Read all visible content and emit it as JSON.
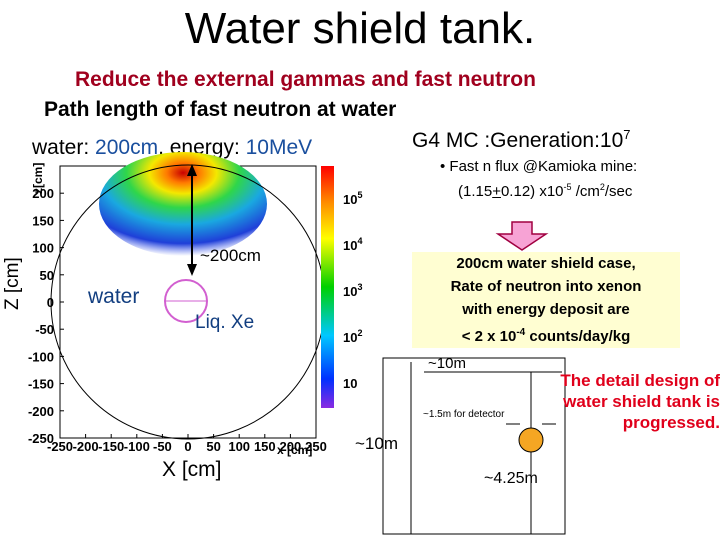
{
  "title": "Water shield tank.",
  "subtitle1": "Reduce the external gammas and fast neutron",
  "subtitle2": "Path length of fast neutron at water",
  "water_line": {
    "prefix": "water: ",
    "length": "200cm",
    "mid": ", energy: ",
    "energy": "10MeV"
  },
  "g4": {
    "text": "G4 MC :Generation:10",
    "exp": "7"
  },
  "flux": {
    "line1": "• Fast n flux @Kamioka mine:",
    "a": "(1.15",
    "pm": "+",
    "b": "0.12) x10",
    "exp1": "-5",
    "c": " /cm",
    "exp2": "2",
    "d": "/sec"
  },
  "callout": {
    "line1": "200cm water shield case,",
    "line2": "Rate of neutron into xenon",
    "line3": "with energy deposit are",
    "line4a": "< 2 x 10",
    "line4exp": "-4",
    "line4b": " counts/day/kg"
  },
  "detail": {
    "line1": "The detail design of",
    "line2": "water shield tank is",
    "line3": "progressed."
  },
  "labels": {
    "z_axis": "Z [cm]",
    "x_axis": "X [cm]",
    "dist_200": "~200cm",
    "water": "water",
    "liq_xe": "Liq. Xe",
    "tank_width": "~10m",
    "tank_height": "~10m",
    "detector_size": "~1.5m for detector",
    "tank_depth": "~4.25m"
  },
  "chart_data": {
    "type": "heatmap",
    "xlabel": "X [cm]",
    "ylabel": "Z [cm]",
    "xlim": [
      -250,
      250
    ],
    "ylim": [
      -250,
      250
    ],
    "x_ticks": [
      "-250",
      "-200",
      "-150",
      "-100",
      "-50",
      "0",
      "50",
      "100",
      "150",
      "200",
      "250"
    ],
    "y_ticks": [
      "200",
      "150",
      "100",
      "50",
      "0",
      "-50",
      "-100",
      "-150",
      "-200",
      "-250"
    ],
    "y_top_tick": "z[cm]",
    "x_end_label": "x [cm]",
    "colorbar_ticks": [
      "10",
      "10",
      "10",
      "10",
      "10"
    ],
    "colorbar_exps": [
      "5",
      "4",
      "3",
      "2",
      ""
    ],
    "colors": {
      "bg": "#ffffff",
      "circle": "#000000"
    }
  }
}
